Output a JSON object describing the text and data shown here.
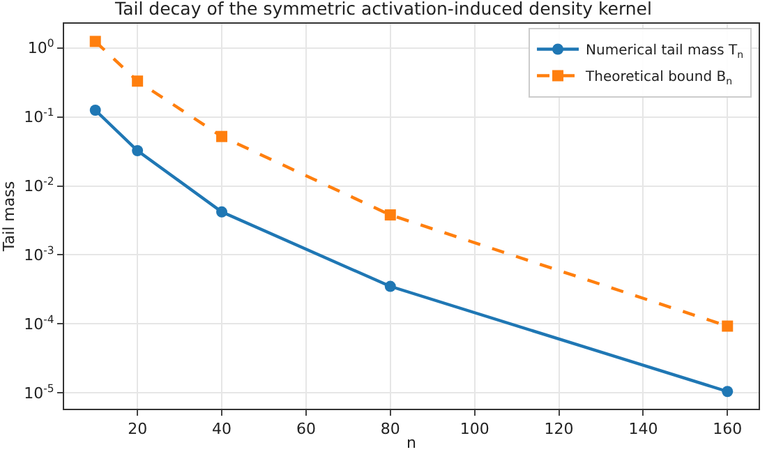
{
  "chart_data": {
    "type": "line",
    "title": "Tail decay of the symmetric activation-induced density kernel",
    "xlabel": "n",
    "ylabel": "Tail mass",
    "x": [
      10,
      20,
      40,
      80,
      160
    ],
    "series": [
      {
        "name": "Numerical tail mass T$_{n}$",
        "color": "#1f77b4",
        "marker": "circle",
        "line_style": "solid",
        "values": [
          0.125,
          0.0324,
          0.0042,
          0.00035,
          1.05e-05
        ]
      },
      {
        "name": "Theoretical bound B$_{n}$",
        "color": "#ff7f0e",
        "marker": "square",
        "line_style": "dashed",
        "values": [
          1.24,
          0.33,
          0.052,
          0.0038,
          9.3e-05
        ]
      }
    ],
    "log": "y",
    "xlim": [
      2.6,
      167.4
    ],
    "xticks": [
      20,
      40,
      60,
      80,
      100,
      120,
      140,
      160
    ],
    "ylim": [
      5.9e-06,
      2.24
    ],
    "yticks": [
      {
        "value": 1,
        "label": "10$^{0}$"
      },
      {
        "value": 0.1,
        "label": "10$^{-1}$"
      },
      {
        "value": 0.01,
        "label": "10$^{-2}$"
      },
      {
        "value": 0.001,
        "label": "10$^{-3}$"
      },
      {
        "value": 0.0001,
        "label": "10$^{-4}$"
      },
      {
        "value": 1e-05,
        "label": "10$^{-5}$"
      }
    ],
    "grid": true,
    "legend": "top right"
  }
}
